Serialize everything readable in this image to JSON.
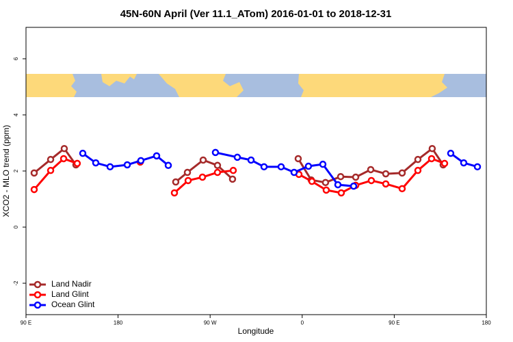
{
  "chart_data": {
    "type": "line",
    "title": "45N-60N April (Ver 11.1_ATom)   2016-01-01 to 2018-12-31",
    "xlabel": "Longitude",
    "ylabel": "XCO2 - MLO trend (ppm)",
    "xlim": [
      90,
      540
    ],
    "xticks": [
      {
        "value": 90,
        "label": "90 E"
      },
      180,
      {
        "value": 270,
        "label": "90 W"
      },
      {
        "value": 360,
        "label": "0"
      },
      {
        "value": 450,
        "label": "90 E"
      },
      {
        "value": 540,
        "label": "180"
      }
    ],
    "ylim": [
      -3.12,
      7.12
    ],
    "yticks": [
      -2,
      0,
      2,
      4,
      6
    ],
    "legend": "lower left",
    "series": [
      {
        "name": "Land Nadir",
        "color": "#a52a2a",
        "x": [
          98.0,
          114.1,
          127.4,
          138.8,
          null,
          236.4,
          247.8,
          263.2,
          277.2,
          291.9,
          null,
          356.1,
          368.8,
          382.8,
          397.6,
          412.3,
          427.0,
          441.7,
          457.7,
          473.1,
          487.1,
          497.8
        ],
        "values": [
          1.93,
          2.41,
          2.8,
          2.22,
          null,
          1.61,
          1.95,
          2.39,
          2.2,
          1.71,
          null,
          2.44,
          1.68,
          1.59,
          1.8,
          1.78,
          2.05,
          1.9,
          1.93,
          2.41,
          2.8,
          2.22
        ]
      },
      {
        "name": "Land Glint",
        "color": "#ff0000",
        "x": [
          98.0,
          114.1,
          126.8,
          140.1,
          null,
          201.7,
          null,
          235.1,
          248.5,
          262.5,
          277.2,
          292.6,
          null,
          356.8,
          369.5,
          383.5,
          398.2,
          412.3,
          427.6,
          441.7,
          457.7,
          473.1,
          486.5,
          499.2
        ],
        "values": [
          1.34,
          2.02,
          2.44,
          2.27,
          null,
          2.32,
          null,
          1.22,
          1.66,
          1.78,
          1.95,
          2.02,
          null,
          1.88,
          1.63,
          1.32,
          1.22,
          1.49,
          1.66,
          1.54,
          1.37,
          2.02,
          2.44,
          2.27
        ]
      },
      {
        "name": "Ocean Glint",
        "color": "#0000ff",
        "x": [
          145.5,
          158.2,
          172.2,
          189.0,
          202.3,
          217.7,
          229.1,
          null,
          275.2,
          296.6,
          310.0,
          322.7,
          339.4,
          352.1,
          366.1,
          380.2,
          394.9,
          410.3,
          null,
          505.2,
          517.9,
          531.3
        ],
        "values": [
          2.63,
          2.29,
          2.15,
          2.22,
          2.37,
          2.54,
          2.2,
          null,
          2.66,
          2.49,
          2.39,
          2.15,
          2.15,
          1.95,
          2.17,
          2.24,
          1.51,
          1.46,
          null,
          2.63,
          2.29,
          2.15
        ]
      }
    ]
  }
}
